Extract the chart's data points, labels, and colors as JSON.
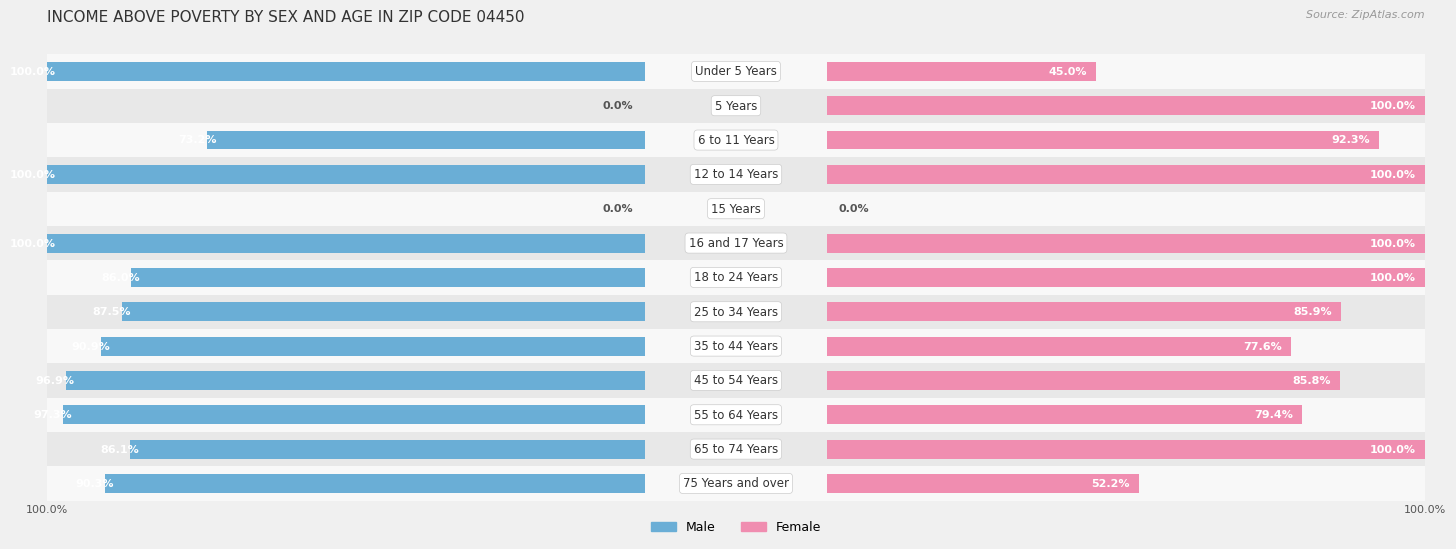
{
  "title": "INCOME ABOVE POVERTY BY SEX AND AGE IN ZIP CODE 04450",
  "source": "Source: ZipAtlas.com",
  "categories": [
    "Under 5 Years",
    "5 Years",
    "6 to 11 Years",
    "12 to 14 Years",
    "15 Years",
    "16 and 17 Years",
    "18 to 24 Years",
    "25 to 34 Years",
    "35 to 44 Years",
    "45 to 54 Years",
    "55 to 64 Years",
    "65 to 74 Years",
    "75 Years and over"
  ],
  "male_values": [
    100.0,
    0.0,
    73.2,
    100.0,
    0.0,
    100.0,
    86.0,
    87.5,
    90.9,
    96.9,
    97.3,
    86.1,
    90.3
  ],
  "female_values": [
    45.0,
    100.0,
    92.3,
    100.0,
    0.0,
    100.0,
    100.0,
    85.9,
    77.6,
    85.8,
    79.4,
    100.0,
    52.2
  ],
  "male_color": "#6aaed6",
  "female_color": "#f08db0",
  "male_label": "Male",
  "female_label": "Female",
  "background_color": "#f0f0f0",
  "row_bg_light": "#f8f8f8",
  "row_bg_dark": "#e8e8e8",
  "title_fontsize": 11,
  "source_fontsize": 8,
  "label_fontsize": 8,
  "category_fontsize": 8.5
}
